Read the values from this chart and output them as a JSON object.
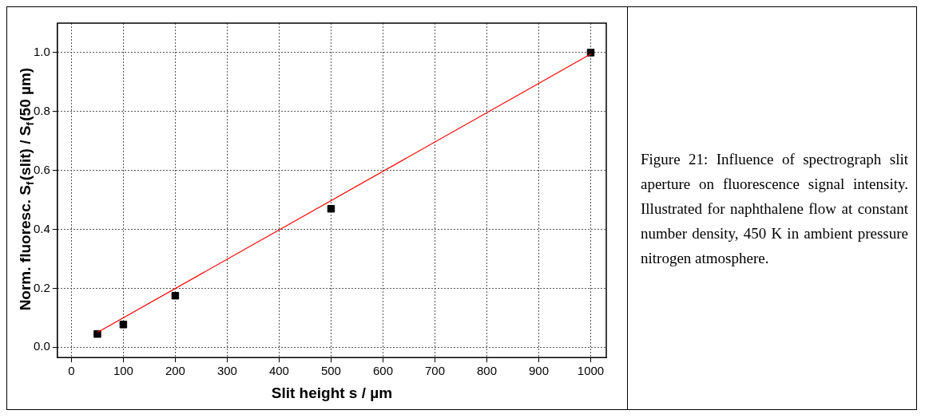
{
  "chart_data": {
    "type": "scatter",
    "xlabel": "Slit height s / µm",
    "ylabel": "Norm. fluoresc. S$_{f}$(slit) / S$_{f}$(50 µm)",
    "x": [
      50,
      100,
      200,
      500,
      1000
    ],
    "series": [
      {
        "color": "#000000",
        "marker": "square",
        "values": [
          0.045,
          0.077,
          0.175,
          0.47,
          1.0
        ]
      },
      {
        "type": "line",
        "color": "#ff0000",
        "marker": "none",
        "x": [
          50,
          1000
        ],
        "values": [
          0.05,
          0.995
        ]
      }
    ],
    "xlim": [
      -27,
      1030
    ],
    "xticks": [
      0,
      100,
      200,
      300,
      400,
      500,
      600,
      700,
      800,
      900,
      1000
    ],
    "ylim": [
      -0.035,
      1.1
    ],
    "yticks": [
      {
        "value": 0,
        "label": "0.0"
      },
      {
        "value": 0.2,
        "label": "0.2"
      },
      {
        "value": 0.4,
        "label": "0.4"
      },
      {
        "value": 0.6,
        "label": "0.6"
      },
      {
        "value": 0.8,
        "label": "0.8"
      },
      {
        "value": 1,
        "label": "1.0"
      }
    ],
    "grid": true,
    "legend": false,
    "annotations": [
      "Figure 21: Influence of spectrograph slit aperture on fluorescence signal intensity. Illustrated for naphthalene flow at constant number density, 450 K in ambient pressure nitrogen atmosphere."
    ]
  }
}
